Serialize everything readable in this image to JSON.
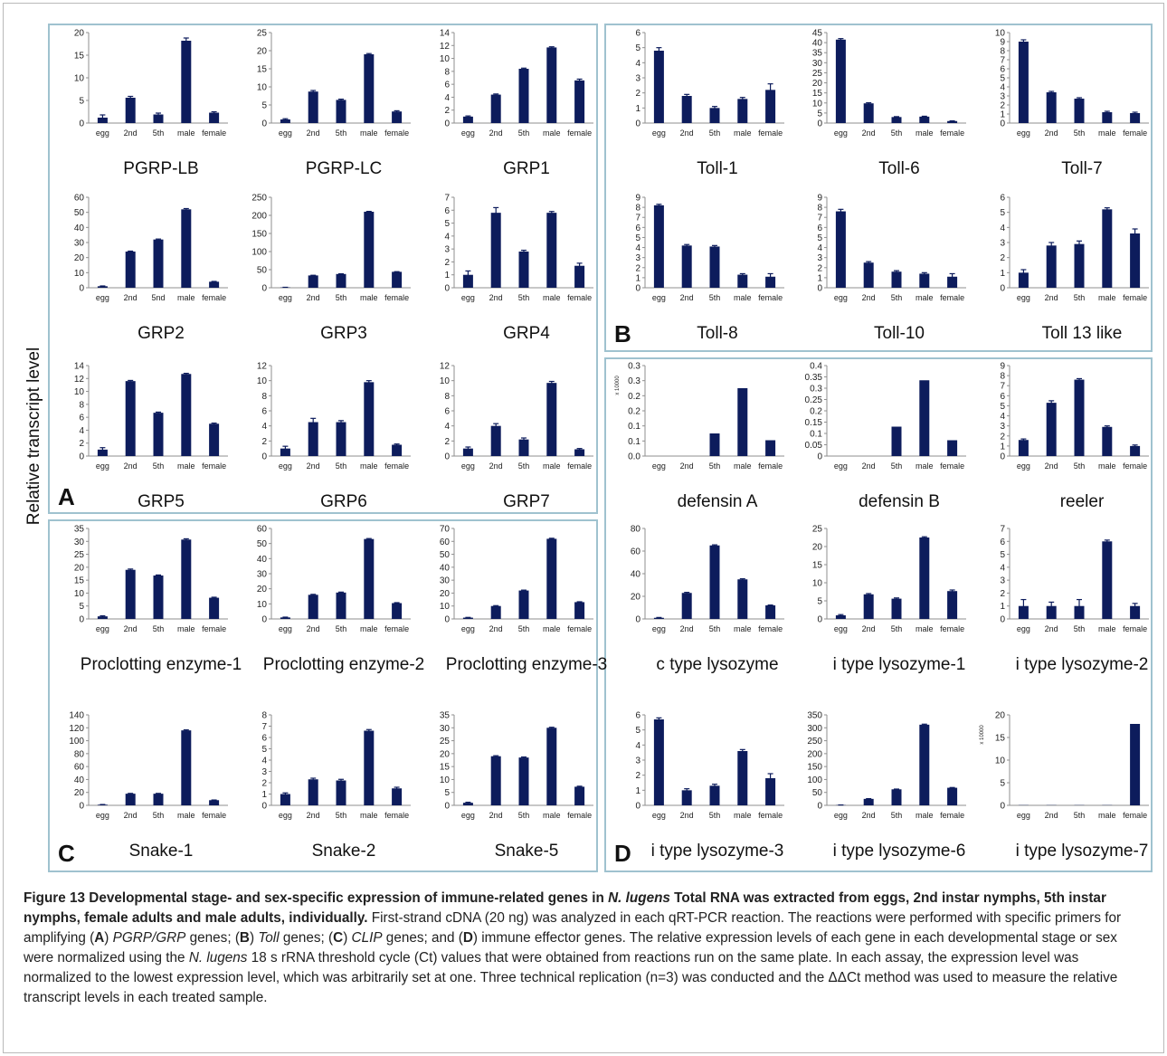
{
  "y_axis_label": "Relative transcript level",
  "panel_labels": [
    "A",
    "B",
    "C",
    "D"
  ],
  "colors": {
    "bar": "#0d1c5c",
    "panel_border": "#9fc2cf",
    "axis": "#8f8f8f"
  },
  "chart_data": [
    {
      "type": "bar",
      "title": "PGRP-LB",
      "categories": [
        "egg",
        "2nd",
        "5th",
        "male",
        "female"
      ],
      "values": [
        1.2,
        5.6,
        1.9,
        18.2,
        2.3
      ],
      "errors": [
        0.6,
        0.3,
        0.3,
        0.6,
        0.2
      ],
      "ylim": [
        0,
        20
      ],
      "yticks": [
        "0",
        "5",
        "10",
        "15",
        "20"
      ],
      "ylabel": "",
      "xlabel": "",
      "grid": false
    },
    {
      "type": "bar",
      "title": "PGRP-LC",
      "categories": [
        "egg",
        "2nd",
        "5th",
        "male",
        "female"
      ],
      "values": [
        1.0,
        8.7,
        6.4,
        19.0,
        3.2
      ],
      "errors": [
        0.2,
        0.3,
        0.2,
        0.2,
        0.2
      ],
      "ylim": [
        0,
        25
      ],
      "yticks": [
        "0",
        "5",
        "10",
        "15",
        "20",
        "25"
      ],
      "ylabel": "",
      "xlabel": "",
      "grid": false
    },
    {
      "type": "bar",
      "title": "GRP1",
      "categories": [
        "egg",
        "2nd",
        "5th",
        "male",
        "female"
      ],
      "values": [
        1.0,
        4.4,
        8.4,
        11.7,
        6.6
      ],
      "errors": [
        0.1,
        0.1,
        0.1,
        0.1,
        0.2
      ],
      "ylim": [
        0,
        14
      ],
      "yticks": [
        "0",
        "2",
        "4",
        "6",
        "8",
        "10",
        "12",
        "14"
      ],
      "ylabel": "",
      "xlabel": "",
      "grid": false
    },
    {
      "type": "bar",
      "title": "Toll-1",
      "categories": [
        "egg",
        "2nd",
        "5th",
        "male",
        "female"
      ],
      "values": [
        4.8,
        1.8,
        1.0,
        1.6,
        2.2
      ],
      "errors": [
        0.2,
        0.1,
        0.1,
        0.1,
        0.4
      ],
      "ylim": [
        0,
        6
      ],
      "yticks": [
        "0",
        "1",
        "2",
        "3",
        "4",
        "5",
        "6"
      ],
      "ylabel": "",
      "xlabel": "",
      "grid": false
    },
    {
      "type": "bar",
      "title": "Toll-6",
      "categories": [
        "egg",
        "2nd",
        "5th",
        "male",
        "female"
      ],
      "values": [
        41.5,
        9.8,
        3.0,
        3.2,
        1.0
      ],
      "errors": [
        0.5,
        0.3,
        0.2,
        0.2,
        0.1
      ],
      "ylim": [
        0,
        45
      ],
      "yticks": [
        "0",
        "5",
        "10",
        "15",
        "20",
        "25",
        "30",
        "35",
        "40",
        "45"
      ],
      "ylabel": "",
      "xlabel": "",
      "grid": false
    },
    {
      "type": "bar",
      "title": "Toll-7",
      "categories": [
        "egg",
        "2nd",
        "5th",
        "male",
        "female"
      ],
      "values": [
        9.0,
        3.4,
        2.7,
        1.2,
        1.1
      ],
      "errors": [
        0.2,
        0.1,
        0.1,
        0.1,
        0.1
      ],
      "ylim": [
        0,
        10
      ],
      "yticks": [
        "0",
        "1",
        "2",
        "3",
        "4",
        "5",
        "6",
        "7",
        "8",
        "9",
        "10"
      ],
      "ylabel": "",
      "xlabel": "",
      "grid": false
    },
    {
      "type": "bar",
      "title": "GRP2",
      "categories": [
        "egg",
        "2nd",
        "5nd",
        "male",
        "female"
      ],
      "values": [
        1.0,
        24.0,
        32.0,
        52.0,
        4.0
      ],
      "errors": [
        0.2,
        0.3,
        0.3,
        0.5,
        0.2
      ],
      "ylim": [
        0,
        60
      ],
      "yticks": [
        "0",
        "10",
        "20",
        "30",
        "40",
        "50",
        "60"
      ],
      "ylabel": "",
      "xlabel": "",
      "grid": false
    },
    {
      "type": "bar",
      "title": "GRP3",
      "categories": [
        "egg",
        "2nd",
        "5th",
        "male",
        "female"
      ],
      "values": [
        1.0,
        34.0,
        38.0,
        210.0,
        44.0
      ],
      "errors": [
        0.3,
        0.5,
        0.5,
        1.0,
        0.5
      ],
      "ylim": [
        0,
        250
      ],
      "yticks": [
        "0",
        "50",
        "100",
        "150",
        "200",
        "250"
      ],
      "ylabel": "",
      "xlabel": "",
      "grid": false
    },
    {
      "type": "bar",
      "title": "GRP4",
      "categories": [
        "egg",
        "2nd",
        "5th",
        "male",
        "female"
      ],
      "values": [
        1.0,
        5.8,
        2.8,
        5.8,
        1.7
      ],
      "errors": [
        0.3,
        0.4,
        0.1,
        0.1,
        0.2
      ],
      "ylim": [
        0,
        7
      ],
      "yticks": [
        "0",
        "1",
        "2",
        "3",
        "4",
        "5",
        "6",
        "7"
      ],
      "ylabel": "",
      "xlabel": "",
      "grid": false
    },
    {
      "type": "bar",
      "title": "Toll-8",
      "categories": [
        "egg",
        "2nd",
        "5th",
        "male",
        "female"
      ],
      "values": [
        8.2,
        4.2,
        4.1,
        1.3,
        1.1
      ],
      "errors": [
        0.1,
        0.1,
        0.1,
        0.1,
        0.3
      ],
      "ylim": [
        0,
        9
      ],
      "yticks": [
        "0",
        "1",
        "2",
        "3",
        "4",
        "5",
        "6",
        "7",
        "8",
        "9"
      ],
      "ylabel": "",
      "xlabel": "",
      "grid": false
    },
    {
      "type": "bar",
      "title": "Toll-10",
      "categories": [
        "egg",
        "2nd",
        "5th",
        "male",
        "female"
      ],
      "values": [
        7.6,
        2.5,
        1.6,
        1.4,
        1.1
      ],
      "errors": [
        0.2,
        0.1,
        0.1,
        0.1,
        0.3
      ],
      "ylim": [
        0,
        9
      ],
      "yticks": [
        "0",
        "1",
        "2",
        "3",
        "4",
        "5",
        "6",
        "7",
        "8",
        "9"
      ],
      "ylabel": "",
      "xlabel": "",
      "grid": false
    },
    {
      "type": "bar",
      "title": "Toll 13 like",
      "categories": [
        "egg",
        "2nd",
        "5th",
        "male",
        "female"
      ],
      "values": [
        1.0,
        2.8,
        2.9,
        5.2,
        3.6
      ],
      "errors": [
        0.2,
        0.2,
        0.2,
        0.1,
        0.3
      ],
      "ylim": [
        0,
        6
      ],
      "yticks": [
        "0",
        "1",
        "2",
        "3",
        "4",
        "5",
        "6"
      ],
      "ylabel": "",
      "xlabel": "",
      "grid": false
    },
    {
      "type": "bar",
      "title": "GRP5",
      "categories": [
        "egg",
        "2nd",
        "5th",
        "male",
        "female"
      ],
      "values": [
        1.0,
        11.6,
        6.7,
        12.7,
        5.0
      ],
      "errors": [
        0.3,
        0.1,
        0.1,
        0.1,
        0.1
      ],
      "ylim": [
        0,
        14
      ],
      "yticks": [
        "0",
        "2",
        "4",
        "6",
        "8",
        "10",
        "12",
        "14"
      ],
      "ylabel": "",
      "xlabel": "",
      "grid": false
    },
    {
      "type": "bar",
      "title": "GRP6",
      "categories": [
        "egg",
        "2nd",
        "5th",
        "male",
        "female"
      ],
      "values": [
        1.0,
        4.5,
        4.5,
        9.8,
        1.5
      ],
      "errors": [
        0.3,
        0.5,
        0.2,
        0.2,
        0.1
      ],
      "ylim": [
        0,
        12
      ],
      "yticks": [
        "0",
        "2",
        "4",
        "6",
        "8",
        "10",
        "12"
      ],
      "ylabel": "",
      "xlabel": "",
      "grid": false
    },
    {
      "type": "bar",
      "title": "GRP7",
      "categories": [
        "egg",
        "2nd",
        "5th",
        "male",
        "female"
      ],
      "values": [
        1.0,
        4.0,
        2.2,
        9.7,
        0.9
      ],
      "errors": [
        0.2,
        0.3,
        0.2,
        0.2,
        0.1
      ],
      "ylim": [
        0,
        12
      ],
      "yticks": [
        "0",
        "2",
        "4",
        "6",
        "8",
        "10",
        "12"
      ],
      "ylabel": "",
      "xlabel": "",
      "grid": false
    },
    {
      "type": "bar",
      "title": "defensin A",
      "categories": [
        "egg",
        "2nd",
        "5th",
        "male",
        "female"
      ],
      "values": [
        0,
        0,
        0.1,
        0.3,
        0.07
      ],
      "errors": [
        0,
        0,
        0,
        0,
        0
      ],
      "ylim": [
        0,
        0.4
      ],
      "yticks": [
        "0.0",
        "0.1",
        "0.1",
        "0.2",
        "0.2",
        "0.3",
        "0.3"
      ],
      "axis_note": "x 10000",
      "ylabel": "",
      "xlabel": "",
      "grid": false
    },
    {
      "type": "bar",
      "title": "defensin B",
      "categories": [
        "egg",
        "2nd",
        "5th",
        "male",
        "female"
      ],
      "values": [
        0,
        0,
        0.13,
        0.335,
        0.07
      ],
      "errors": [
        0,
        0,
        0,
        0,
        0
      ],
      "ylim": [
        0,
        0.4
      ],
      "yticks": [
        "0",
        "0.05",
        "0.1",
        "0.15",
        "0.2",
        "0.25",
        "0.3",
        "0.35",
        "0.4"
      ],
      "ylabel": "",
      "xlabel": "",
      "grid": false
    },
    {
      "type": "bar",
      "title": "reeler",
      "categories": [
        "egg",
        "2nd",
        "5th",
        "male",
        "female"
      ],
      "values": [
        1.6,
        5.3,
        7.6,
        2.9,
        1.0
      ],
      "errors": [
        0.1,
        0.2,
        0.1,
        0.1,
        0.1
      ],
      "ylim": [
        0,
        9
      ],
      "yticks": [
        "0",
        "1",
        "2",
        "3",
        "4",
        "5",
        "6",
        "7",
        "8",
        "9"
      ],
      "ylabel": "",
      "xlabel": "",
      "grid": false
    },
    {
      "type": "bar",
      "title": "Proclotting enzyme-1",
      "categories": [
        "egg",
        "2nd",
        "5th",
        "male",
        "female"
      ],
      "values": [
        1.0,
        19.0,
        16.8,
        30.7,
        8.2
      ],
      "errors": [
        0.2,
        0.3,
        0.2,
        0.3,
        0.2
      ],
      "ylim": [
        0,
        35
      ],
      "yticks": [
        "0",
        "5",
        "10",
        "15",
        "20",
        "25",
        "30",
        "35"
      ],
      "ylabel": "",
      "xlabel": "",
      "grid": false
    },
    {
      "type": "bar",
      "title": "Proclotting enzyme-2",
      "categories": [
        "egg",
        "2nd",
        "5th",
        "male",
        "female"
      ],
      "values": [
        1.0,
        16.0,
        17.5,
        53.0,
        10.5
      ],
      "errors": [
        0.2,
        0.3,
        0.3,
        0.3,
        0.3
      ],
      "ylim": [
        0,
        60
      ],
      "yticks": [
        "0",
        "10",
        "20",
        "30",
        "40",
        "50",
        "60"
      ],
      "ylabel": "",
      "xlabel": "",
      "grid": false
    },
    {
      "type": "bar",
      "title": "Proclotting enzyme-3",
      "categories": [
        "egg",
        "2nd",
        "5th",
        "male",
        "female"
      ],
      "values": [
        1.0,
        10.0,
        22.0,
        62.0,
        13.0
      ],
      "errors": [
        0.2,
        0.3,
        0.3,
        0.4,
        0.3
      ],
      "ylim": [
        0,
        70
      ],
      "yticks": [
        "0",
        "10",
        "20",
        "30",
        "40",
        "50",
        "60",
        "70"
      ],
      "ylabel": "",
      "xlabel": "",
      "grid": false
    },
    {
      "type": "bar",
      "title": "c type lysozyme",
      "categories": [
        "egg",
        "2nd",
        "5th",
        "male",
        "female"
      ],
      "values": [
        1.0,
        23.0,
        65.0,
        35.0,
        12.0
      ],
      "errors": [
        0.3,
        0.5,
        0.5,
        0.5,
        0.3
      ],
      "ylim": [
        0,
        80
      ],
      "yticks": [
        "0",
        "20",
        "40",
        "60",
        "80"
      ],
      "ylabel": "",
      "xlabel": "",
      "grid": false
    },
    {
      "type": "bar",
      "title": "i type lysozyme-1",
      "categories": [
        "egg",
        "2nd",
        "5th",
        "male",
        "female"
      ],
      "values": [
        1.0,
        6.8,
        5.6,
        22.5,
        7.7
      ],
      "errors": [
        0.2,
        0.2,
        0.2,
        0.2,
        0.3
      ],
      "ylim": [
        0,
        25
      ],
      "yticks": [
        "0",
        "5",
        "10",
        "15",
        "20",
        "25"
      ],
      "ylabel": "",
      "xlabel": "",
      "grid": false
    },
    {
      "type": "bar",
      "title": "i type lysozyme-2",
      "categories": [
        "egg",
        "2nd",
        "5th",
        "male",
        "female"
      ],
      "values": [
        1.0,
        1.0,
        1.0,
        6.0,
        1.0
      ],
      "errors": [
        0.5,
        0.3,
        0.5,
        0.1,
        0.2
      ],
      "ylim": [
        0,
        7
      ],
      "yticks": [
        "0",
        "1",
        "2",
        "3",
        "4",
        "5",
        "6",
        "7"
      ],
      "ylabel": "",
      "xlabel": "",
      "grid": false
    },
    {
      "type": "bar",
      "title": "Snake-1",
      "categories": [
        "egg",
        "2nd",
        "5th",
        "male",
        "female"
      ],
      "values": [
        1.0,
        18.0,
        18.0,
        116.0,
        8.0
      ],
      "errors": [
        0.3,
        0.5,
        0.5,
        0.8,
        0.3
      ],
      "ylim": [
        0,
        140
      ],
      "yticks": [
        "0",
        "20",
        "40",
        "60",
        "80",
        "100",
        "120",
        "140"
      ],
      "ylabel": "",
      "xlabel": "",
      "grid": false
    },
    {
      "type": "bar",
      "title": "Snake-2",
      "categories": [
        "egg",
        "2nd",
        "5th",
        "male",
        "female"
      ],
      "values": [
        1.0,
        2.3,
        2.2,
        6.6,
        1.5
      ],
      "errors": [
        0.1,
        0.1,
        0.1,
        0.1,
        0.1
      ],
      "ylim": [
        0,
        8
      ],
      "yticks": [
        "0",
        "1",
        "2",
        "3",
        "4",
        "5",
        "6",
        "7",
        "8"
      ],
      "ylabel": "",
      "xlabel": "",
      "grid": false
    },
    {
      "type": "bar",
      "title": "Snake-5",
      "categories": [
        "egg",
        "2nd",
        "5th",
        "male",
        "female"
      ],
      "values": [
        1.0,
        19.0,
        18.5,
        30.0,
        7.2
      ],
      "errors": [
        0.2,
        0.2,
        0.2,
        0.2,
        0.2
      ],
      "ylim": [
        0,
        35
      ],
      "yticks": [
        "0",
        "5",
        "10",
        "15",
        "20",
        "25",
        "30",
        "35"
      ],
      "ylabel": "",
      "xlabel": "",
      "grid": false
    },
    {
      "type": "bar",
      "title": "i type lysozyme-3",
      "categories": [
        "egg",
        "2nd",
        "5th",
        "male",
        "female"
      ],
      "values": [
        5.7,
        1.0,
        1.3,
        3.6,
        1.8
      ],
      "errors": [
        0.1,
        0.1,
        0.1,
        0.1,
        0.3
      ],
      "ylim": [
        0,
        6
      ],
      "yticks": [
        "0",
        "1",
        "2",
        "3",
        "4",
        "5",
        "6"
      ],
      "ylabel": "",
      "xlabel": "",
      "grid": false
    },
    {
      "type": "bar",
      "title": "i type lysozyme-6",
      "categories": [
        "egg",
        "2nd",
        "5th",
        "male",
        "female"
      ],
      "values": [
        1.0,
        25.0,
        62.0,
        312.0,
        68.0
      ],
      "errors": [
        0.5,
        1.0,
        1.0,
        2.0,
        1.0
      ],
      "ylim": [
        0,
        350
      ],
      "yticks": [
        "0",
        "50",
        "100",
        "150",
        "200",
        "250",
        "300",
        "350"
      ],
      "ylabel": "",
      "xlabel": "",
      "grid": false
    },
    {
      "type": "bar",
      "title": "i type lysozyme-7",
      "categories": [
        "egg",
        "2nd",
        "5th",
        "male",
        "female"
      ],
      "values": [
        0.05,
        0.05,
        0.05,
        0.05,
        18.0
      ],
      "errors": [
        0,
        0,
        0,
        0,
        0
      ],
      "ylim": [
        0,
        20
      ],
      "yticks": [
        "0",
        "5",
        "10",
        "15",
        "20"
      ],
      "axis_note": "x 10000",
      "ylabel": "",
      "xlabel": "",
      "grid": false
    }
  ],
  "caption": {
    "fig_label": "Figure 13",
    "title_1": " Developmental stage- and sex-specific expression of immune-related genes in ",
    "species_bold": "N. lugens",
    "title_2": " Total RNA was extracted from eggs, 2nd instar nymphs, 5th instar nymphs, female adults and male adults, individually.",
    "text_1": " First-strand cDNA (20 ng) was analyzed in each qRT-PCR reaction. The reactions were performed with specific primers for amplifying (",
    "ref_a": "A",
    "text_2": ") ",
    "gene_a": "PGRP/GRP",
    "text_3": " genes; (",
    "ref_b": "B",
    "text_4": ") ",
    "gene_b": "Toll",
    "text_5": " genes; (",
    "ref_c": "C",
    "text_6": ") ",
    "gene_c": "CLIP",
    "text_7": " genes; and (",
    "ref_d": "D",
    "text_8": ") immune effector genes. The relative expression levels of each gene in each developmental stage or sex were normalized using the ",
    "species_italic": "N. lugens",
    "text_9": " 18 s rRNA threshold cycle (Ct) values that were obtained from reactions run on the same plate. In each assay, the expression level was normalized to the lowest expression level, which was arbitrarily set at one. Three technical replication (n=3) was conducted and the ΔΔCt method was used to measure the relative transcript levels in each treated sample."
  }
}
